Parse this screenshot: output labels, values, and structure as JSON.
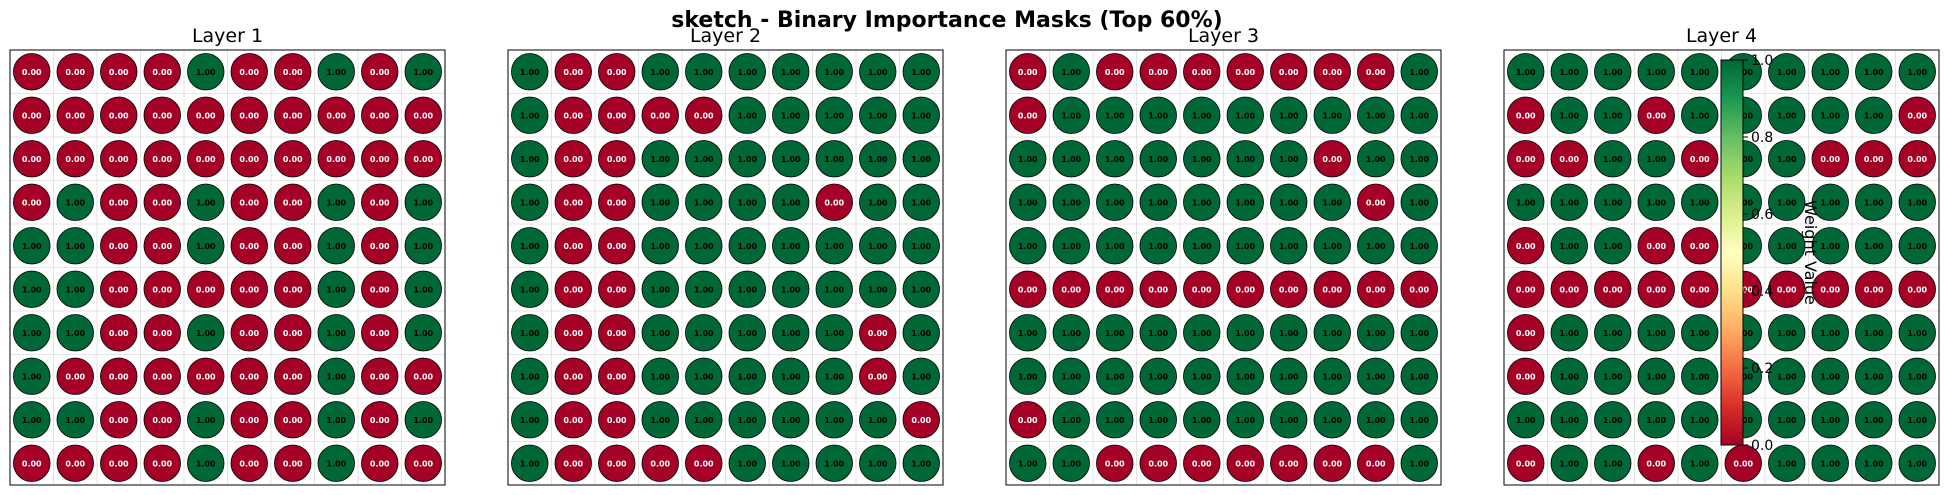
{
  "chart_data": {
    "type": "heatmap",
    "title": "sketch - Binary Importance Masks (Top 60%)",
    "colormap": "RdYlGn",
    "colors": {
      "low": "#a50026",
      "high": "#006837"
    },
    "grid_rows": 10,
    "grid_cols": 10,
    "colorbar": {
      "label": "Weight Value",
      "ticks": [
        "0.0",
        "0.2",
        "0.4",
        "0.6",
        "0.8",
        "1.0"
      ],
      "range": [
        0,
        1
      ]
    },
    "panels": [
      {
        "title": "Layer 1",
        "values": [
          [
            0,
            0,
            0,
            0,
            1,
            0,
            0,
            1,
            0,
            1
          ],
          [
            0,
            0,
            0,
            0,
            0,
            0,
            0,
            0,
            0,
            0
          ],
          [
            0,
            0,
            0,
            0,
            0,
            0,
            0,
            0,
            0,
            0
          ],
          [
            0,
            1,
            0,
            0,
            1,
            0,
            0,
            1,
            0,
            1
          ],
          [
            1,
            1,
            0,
            0,
            1,
            0,
            0,
            1,
            0,
            1
          ],
          [
            1,
            1,
            0,
            0,
            0,
            0,
            0,
            1,
            0,
            1
          ],
          [
            1,
            1,
            0,
            0,
            1,
            0,
            0,
            1,
            0,
            1
          ],
          [
            1,
            0,
            0,
            0,
            0,
            0,
            0,
            1,
            0,
            0
          ],
          [
            1,
            1,
            0,
            0,
            1,
            0,
            0,
            1,
            0,
            1
          ],
          [
            0,
            0,
            0,
            0,
            1,
            0,
            0,
            1,
            0,
            0
          ]
        ]
      },
      {
        "title": "Layer 2",
        "values": [
          [
            1,
            0,
            0,
            1,
            1,
            1,
            1,
            1,
            1,
            1
          ],
          [
            1,
            0,
            0,
            0,
            0,
            1,
            1,
            1,
            1,
            1
          ],
          [
            1,
            0,
            0,
            1,
            1,
            1,
            1,
            1,
            1,
            1
          ],
          [
            1,
            0,
            0,
            1,
            1,
            1,
            1,
            0,
            1,
            1
          ],
          [
            1,
            0,
            0,
            1,
            1,
            1,
            1,
            1,
            1,
            1
          ],
          [
            1,
            0,
            0,
            1,
            1,
            1,
            1,
            1,
            1,
            1
          ],
          [
            1,
            0,
            0,
            1,
            1,
            1,
            1,
            1,
            0,
            1
          ],
          [
            1,
            0,
            0,
            1,
            1,
            1,
            1,
            1,
            0,
            1
          ],
          [
            1,
            0,
            0,
            1,
            1,
            1,
            1,
            1,
            1,
            0
          ],
          [
            1,
            0,
            0,
            0,
            0,
            1,
            1,
            1,
            1,
            1
          ]
        ]
      },
      {
        "title": "Layer 3",
        "values": [
          [
            0,
            1,
            0,
            0,
            0,
            0,
            0,
            0,
            0,
            1
          ],
          [
            0,
            1,
            1,
            1,
            1,
            1,
            1,
            1,
            1,
            1
          ],
          [
            1,
            1,
            1,
            1,
            1,
            1,
            1,
            0,
            1,
            1
          ],
          [
            1,
            1,
            1,
            1,
            1,
            1,
            1,
            1,
            0,
            1
          ],
          [
            1,
            1,
            1,
            1,
            1,
            1,
            1,
            1,
            1,
            1
          ],
          [
            0,
            0,
            0,
            0,
            0,
            0,
            0,
            0,
            0,
            0
          ],
          [
            1,
            1,
            1,
            1,
            1,
            1,
            1,
            1,
            1,
            1
          ],
          [
            1,
            1,
            1,
            1,
            1,
            1,
            1,
            1,
            1,
            1
          ],
          [
            0,
            1,
            1,
            1,
            1,
            1,
            1,
            1,
            1,
            1
          ],
          [
            1,
            1,
            0,
            0,
            0,
            0,
            0,
            0,
            0,
            1
          ]
        ]
      },
      {
        "title": "Layer 4",
        "values": [
          [
            1,
            1,
            1,
            1,
            1,
            1,
            1,
            1,
            1,
            1
          ],
          [
            0,
            1,
            1,
            0,
            1,
            1,
            1,
            1,
            1,
            0
          ],
          [
            0,
            0,
            1,
            1,
            0,
            1,
            1,
            0,
            0,
            0
          ],
          [
            1,
            1,
            1,
            1,
            1,
            1,
            1,
            1,
            1,
            1
          ],
          [
            0,
            1,
            1,
            0,
            0,
            1,
            1,
            1,
            1,
            1
          ],
          [
            0,
            0,
            0,
            0,
            0,
            0,
            0,
            0,
            0,
            0
          ],
          [
            0,
            1,
            1,
            1,
            1,
            1,
            1,
            1,
            1,
            1
          ],
          [
            0,
            1,
            1,
            1,
            1,
            1,
            1,
            1,
            1,
            1
          ],
          [
            1,
            1,
            1,
            1,
            1,
            1,
            1,
            1,
            1,
            1
          ],
          [
            0,
            1,
            1,
            0,
            1,
            0,
            1,
            1,
            1,
            1
          ]
        ]
      }
    ]
  }
}
